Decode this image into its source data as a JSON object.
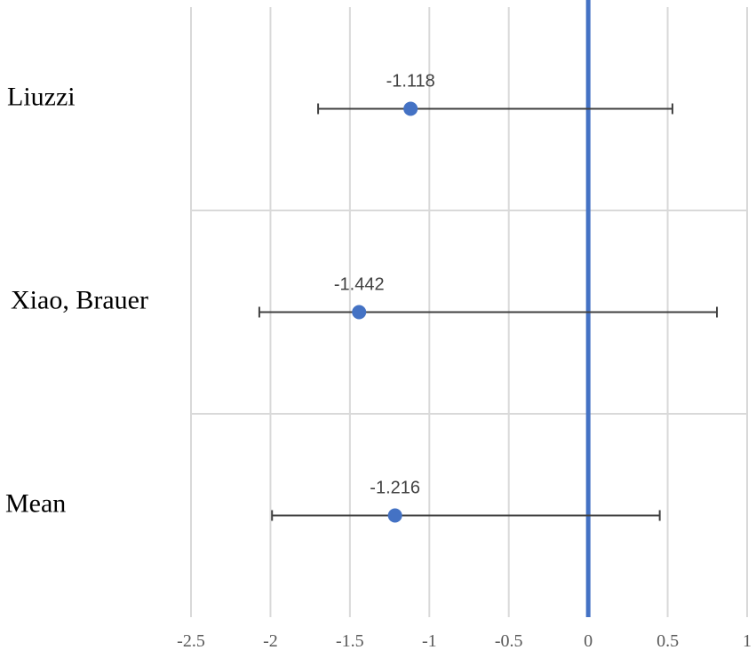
{
  "chart_data": {
    "type": "scatter",
    "subtype": "forest-plot",
    "title": "",
    "xlabel": "",
    "ylabel": "",
    "xlim": [
      -2.5,
      1
    ],
    "xticks": [
      -2.5,
      -2,
      -1.5,
      -1,
      -0.5,
      0,
      0.5,
      1
    ],
    "xtick_labels": [
      "-2.5",
      "-2",
      "-1.5",
      "-1",
      "-0.5",
      "0",
      "0.5",
      "1"
    ],
    "reference_line_x": 0,
    "grid": true,
    "legend": "none",
    "categories": [
      "Liuzzi",
      "Xiao, Brauer",
      "Mean"
    ],
    "estimates": [
      -1.118,
      -1.442,
      -1.216
    ],
    "estimate_labels": [
      "-1.118",
      "-1.442",
      "-1.216"
    ],
    "ci_lower": [
      -1.7,
      -2.07,
      -1.99
    ],
    "ci_upper": [
      0.53,
      0.81,
      0.45
    ],
    "colors": {
      "marker": "#4472C4",
      "reference_line": "#4472C4",
      "whisker": "#404040",
      "grid": "#d9d9d9"
    }
  }
}
